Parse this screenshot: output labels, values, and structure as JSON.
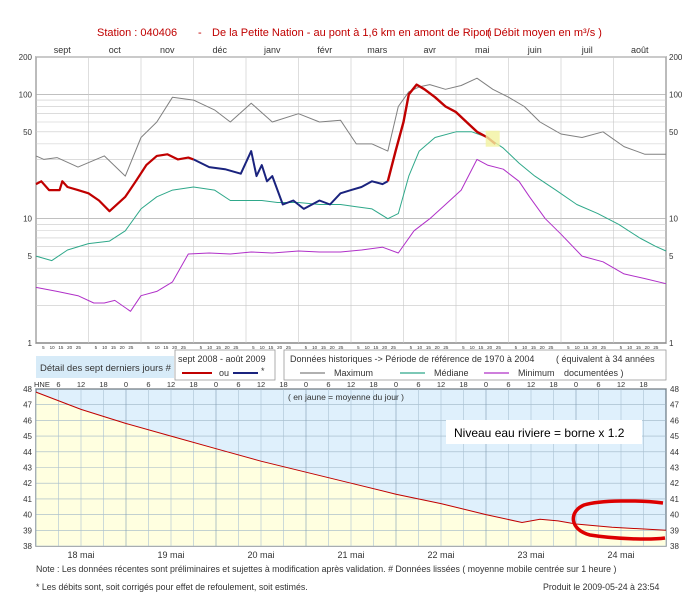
{
  "colors": {
    "title": "#c00000",
    "recent": "#c00000",
    "older": "#1a237e",
    "maximum": "#808080",
    "mediane": "#2fa88a",
    "minimum": "#b030c8",
    "yellow_fill": "#ffffe0",
    "blue_fill": "#dff0fc",
    "detail_bg": "#d7ebf8",
    "level_line": "#c00000",
    "circle": "#dd0000"
  },
  "header": {
    "station_label": "Station : 040406",
    "dash": "-",
    "river": "De la Petite Nation - au pont à 1,6 km en amont de Ripon",
    "unit": "( Débit moyen en m³/s )"
  },
  "legend": {
    "detail_label": "Détail des sept derniers jours #",
    "period_label": "sept 2008 - août 2009",
    "ou_label": "ou",
    "star_label": "*",
    "historic_label": "Données historiques -> Période de référence de 1970 à 2004",
    "equiv_label": "( équivalent à 34 années",
    "documented_label": "documentées )",
    "maximum_label": "Maximum",
    "mediane_label": "Médiane",
    "minimum_label": "Minimum"
  },
  "annotation": "Niveau eau riviere = borne x 1.2",
  "bottom_note_top": "( en jaune = moyenne du jour )",
  "notes": {
    "note1": "Note : Les données récentes sont préliminaires et sujettes à modification après validation.   # Données lissées ( moyenne mobile centrée sur 1 heure )",
    "note2": "* Les débits sont, soit corrigés pour effet de refoulement, soit estimés.",
    "produced": "Produit le 2009-05-24 à 23:54"
  },
  "chart_data": [
    {
      "type": "line",
      "title": "Station : 040406 - De la Petite Nation - au pont à 1,6 km en amont de Ripon ( Débit moyen en m³/s )",
      "yscale": "log",
      "ylim": [
        1,
        200
      ],
      "yticks": [
        1,
        5,
        10,
        50,
        100,
        200
      ],
      "month_labels": [
        "sept",
        "oct",
        "nov",
        "déc",
        "janv",
        "févr",
        "mars",
        "avr",
        "mai",
        "juin",
        "juil",
        "août"
      ],
      "day_ticks": [
        "5",
        "10",
        "15",
        "20",
        "25"
      ],
      "day_ticks_shown_per_month": 12,
      "grid": true,
      "series": [
        {
          "name": "Maximum",
          "x": [
            0,
            0.15,
            0.4,
            0.8,
            1.3,
            1.7,
            2.0,
            2.3,
            2.6,
            3.0,
            3.4,
            3.7,
            4.1,
            4.5,
            5.0,
            5.4,
            5.8,
            6.1,
            6.4,
            6.7,
            6.9,
            7.1,
            7.3,
            7.5,
            7.8,
            8.1,
            8.4,
            8.7,
            9.0,
            9.3,
            9.6,
            10.0,
            10.4,
            10.8,
            11.2,
            11.6,
            12.0
          ],
          "y": [
            32,
            30,
            31,
            26,
            32,
            22,
            45,
            60,
            95,
            90,
            75,
            60,
            85,
            60,
            70,
            60,
            62,
            40,
            40,
            35,
            80,
            105,
            115,
            120,
            110,
            118,
            135,
            110,
            95,
            80,
            60,
            48,
            45,
            50,
            38,
            33,
            33
          ]
        },
        {
          "name": "Médiane",
          "x": [
            0,
            0.3,
            0.6,
            1.0,
            1.4,
            1.7,
            2.0,
            2.3,
            2.6,
            3.0,
            3.4,
            3.7,
            4.0,
            4.3,
            4.6,
            5.0,
            5.4,
            5.8,
            6.1,
            6.4,
            6.7,
            6.9,
            7.1,
            7.3,
            7.6,
            8.0,
            8.3,
            8.6,
            8.9,
            9.2,
            9.5,
            9.9,
            10.3,
            10.7,
            11.1,
            11.5,
            11.8,
            12.0
          ],
          "y": [
            5,
            4.6,
            5.6,
            6.3,
            6.6,
            8,
            12,
            15,
            17,
            18,
            17,
            14,
            14,
            14,
            13.5,
            13.5,
            13,
            13,
            12.5,
            12,
            10,
            11,
            22,
            35,
            45,
            50,
            50,
            45,
            37,
            28,
            22,
            17,
            13,
            11,
            9,
            7,
            6,
            5.5
          ]
        },
        {
          "name": "Minimum",
          "x": [
            0,
            0.4,
            0.8,
            1.1,
            1.3,
            1.5,
            1.8,
            2.0,
            2.3,
            2.6,
            2.9,
            3.3,
            3.7,
            4.1,
            4.5,
            5.0,
            5.4,
            5.8,
            6.2,
            6.6,
            6.9,
            7.2,
            7.5,
            7.8,
            8.1,
            8.4,
            8.6,
            8.9,
            9.2,
            9.4,
            9.7,
            10.0,
            10.4,
            10.8,
            11.2,
            11.6,
            12.0
          ],
          "y": [
            2.8,
            2.6,
            2.4,
            2.1,
            2.1,
            2.2,
            1.8,
            2.4,
            2.6,
            3.1,
            5.2,
            5.3,
            5.2,
            5.4,
            5.3,
            5.5,
            5.4,
            5.4,
            5.6,
            5.9,
            5.3,
            8,
            10,
            13,
            17,
            30,
            27,
            25,
            20,
            15,
            10,
            7.5,
            5,
            4.5,
            3.6,
            3.3,
            3
          ]
        },
        {
          "name": "sept 2008 - août 2009",
          "x": [
            0,
            0.1,
            0.25,
            0.45,
            0.5,
            0.6,
            0.8,
            1.0,
            1.2,
            1.4,
            1.7,
            1.9,
            2.1,
            2.3,
            2.5,
            2.7,
            2.9,
            3.0
          ],
          "y": [
            19,
            20,
            17,
            17,
            20,
            18,
            17,
            16,
            14,
            11.5,
            15,
            20,
            27,
            32,
            33,
            30,
            31,
            30
          ]
        },
        {
          "name": "ou",
          "x": [
            3.0,
            3.3,
            3.6,
            3.9,
            4.1,
            4.2,
            4.3,
            4.4,
            4.5,
            4.7,
            4.9,
            5.1,
            5.4,
            5.6,
            5.8,
            6.0,
            6.2,
            6.4,
            6.6,
            6.7
          ],
          "y": [
            30,
            26,
            25,
            23,
            35,
            22,
            27,
            20,
            22,
            13,
            14,
            12,
            14,
            13,
            16,
            17,
            18,
            20,
            19,
            20
          ]
        },
        {
          "name": "*",
          "x": [
            6.7,
            6.85,
            7.0,
            7.1,
            7.25,
            7.4,
            7.6,
            7.8,
            8.0,
            8.2,
            8.4,
            8.6,
            8.75
          ],
          "y": [
            20,
            35,
            60,
            100,
            120,
            110,
            95,
            80,
            72,
            60,
            50,
            45,
            40
          ]
        }
      ]
    },
    {
      "type": "line",
      "title": "",
      "ylim": [
        38,
        48
      ],
      "yticks": [
        38,
        39,
        40,
        41,
        42,
        43,
        44,
        45,
        46,
        47,
        48
      ],
      "x_day_labels": [
        "18 mai",
        "19 mai",
        "20 mai",
        "21 mai",
        "22 mai",
        "23 mai",
        "24 mai"
      ],
      "hour_ticks": [
        "HNE",
        "6",
        "12",
        "18",
        "0",
        "6",
        "12",
        "18",
        "0",
        "6",
        "12",
        "18",
        "0",
        "6",
        "12",
        "18",
        "0",
        "6",
        "12",
        "18",
        "0",
        "6",
        "12",
        "18",
        "0",
        "6",
        "12",
        "18"
      ],
      "grid": true,
      "series": [
        {
          "name": "level",
          "x": [
            0,
            0.5,
            1.0,
            1.5,
            2.0,
            2.5,
            3.0,
            3.5,
            4.0,
            4.5,
            5.0,
            5.4,
            5.6,
            5.8,
            6.0,
            6.4,
            7.0
          ],
          "y": [
            47.8,
            46.7,
            45.8,
            45.0,
            44.2,
            43.4,
            42.7,
            42.0,
            41.3,
            40.7,
            40.0,
            39.5,
            39.7,
            39.6,
            39.4,
            39.2,
            39.0
          ]
        }
      ],
      "daily_mean_fill": true
    }
  ]
}
